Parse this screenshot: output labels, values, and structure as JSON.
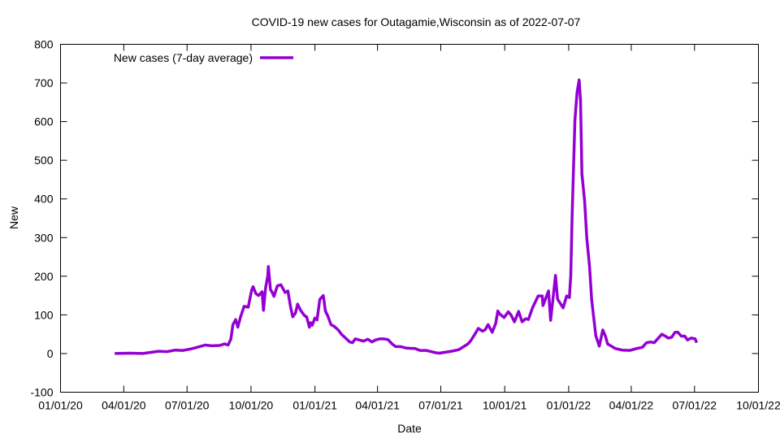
{
  "chart_data": {
    "type": "line",
    "title": "COVID-19 new cases for Outagamie,Wisconsin as of 2022-07-07",
    "xlabel": "Date",
    "ylabel": "New",
    "xlim": [
      "2020-01-01",
      "2022-10-01"
    ],
    "ylim": [
      -100,
      800
    ],
    "x_ticks": [
      "01/01/20",
      "04/01/20",
      "07/01/20",
      "10/01/20",
      "01/01/21",
      "04/01/21",
      "07/01/21",
      "10/01/21",
      "01/01/22",
      "04/01/22",
      "07/01/22",
      "10/01/22"
    ],
    "x_tick_dates": [
      "2020-01-01",
      "2020-04-01",
      "2020-07-01",
      "2020-10-01",
      "2021-01-01",
      "2021-04-01",
      "2021-07-01",
      "2021-10-01",
      "2022-01-01",
      "2022-04-01",
      "2022-07-01",
      "2022-10-01"
    ],
    "y_ticks": [
      -100,
      0,
      100,
      200,
      300,
      400,
      500,
      600,
      700,
      800
    ],
    "grid": false,
    "legend_position": "top-left",
    "series": [
      {
        "name": "New cases (7-day average)",
        "color": "#9400d3",
        "points": [
          [
            "2020-03-19",
            0
          ],
          [
            "2020-04-10",
            1
          ],
          [
            "2020-04-28",
            0
          ],
          [
            "2020-05-10",
            3
          ],
          [
            "2020-05-21",
            6
          ],
          [
            "2020-06-02",
            5
          ],
          [
            "2020-06-14",
            9
          ],
          [
            "2020-06-25",
            8
          ],
          [
            "2020-07-07",
            12
          ],
          [
            "2020-07-19",
            18
          ],
          [
            "2020-07-27",
            22
          ],
          [
            "2020-08-05",
            20
          ],
          [
            "2020-08-17",
            21
          ],
          [
            "2020-08-24",
            25
          ],
          [
            "2020-08-29",
            22
          ],
          [
            "2020-09-02",
            37
          ],
          [
            "2020-09-05",
            75
          ],
          [
            "2020-09-09",
            88
          ],
          [
            "2020-09-12",
            68
          ],
          [
            "2020-09-16",
            95
          ],
          [
            "2020-09-21",
            122
          ],
          [
            "2020-09-27",
            120
          ],
          [
            "2020-10-02",
            165
          ],
          [
            "2020-10-04",
            173
          ],
          [
            "2020-10-08",
            155
          ],
          [
            "2020-10-12",
            150
          ],
          [
            "2020-10-17",
            160
          ],
          [
            "2020-10-19",
            112
          ],
          [
            "2020-10-22",
            170
          ],
          [
            "2020-10-25",
            200
          ],
          [
            "2020-10-26",
            225
          ],
          [
            "2020-10-29",
            165
          ],
          [
            "2020-10-31",
            160
          ],
          [
            "2020-11-03",
            148
          ],
          [
            "2020-11-08",
            175
          ],
          [
            "2020-11-13",
            178
          ],
          [
            "2020-11-19",
            158
          ],
          [
            "2020-11-23",
            162
          ],
          [
            "2020-11-27",
            120
          ],
          [
            "2020-11-30",
            95
          ],
          [
            "2020-12-04",
            105
          ],
          [
            "2020-12-07",
            128
          ],
          [
            "2020-12-12",
            110
          ],
          [
            "2020-12-17",
            98
          ],
          [
            "2020-12-20",
            95
          ],
          [
            "2020-12-24",
            68
          ],
          [
            "2020-12-26",
            80
          ],
          [
            "2020-12-28",
            73
          ],
          [
            "2021-01-01",
            92
          ],
          [
            "2021-01-04",
            87
          ],
          [
            "2021-01-08",
            140
          ],
          [
            "2021-01-13",
            150
          ],
          [
            "2021-01-16",
            110
          ],
          [
            "2021-01-20",
            95
          ],
          [
            "2021-01-24",
            75
          ],
          [
            "2021-01-29",
            70
          ],
          [
            "2021-02-04",
            60
          ],
          [
            "2021-02-08",
            50
          ],
          [
            "2021-02-14",
            40
          ],
          [
            "2021-02-20",
            30
          ],
          [
            "2021-02-24",
            28
          ],
          [
            "2021-02-28",
            38
          ],
          [
            "2021-03-06",
            35
          ],
          [
            "2021-03-12",
            32
          ],
          [
            "2021-03-18",
            37
          ],
          [
            "2021-03-24",
            30
          ],
          [
            "2021-03-29",
            35
          ],
          [
            "2021-04-04",
            38
          ],
          [
            "2021-04-10",
            38
          ],
          [
            "2021-04-16",
            36
          ],
          [
            "2021-04-22",
            25
          ],
          [
            "2021-04-27",
            18
          ],
          [
            "2021-05-04",
            18
          ],
          [
            "2021-05-13",
            14
          ],
          [
            "2021-05-25",
            13
          ],
          [
            "2021-06-01",
            8
          ],
          [
            "2021-06-10",
            8
          ],
          [
            "2021-06-17",
            5
          ],
          [
            "2021-06-24",
            2
          ],
          [
            "2021-06-29",
            1
          ],
          [
            "2021-07-06",
            3
          ],
          [
            "2021-07-13",
            5
          ],
          [
            "2021-07-22",
            8
          ],
          [
            "2021-07-27",
            10
          ],
          [
            "2021-08-03",
            18
          ],
          [
            "2021-08-09",
            25
          ],
          [
            "2021-08-13",
            33
          ],
          [
            "2021-08-18",
            47
          ],
          [
            "2021-08-24",
            65
          ],
          [
            "2021-08-30",
            58
          ],
          [
            "2021-09-03",
            62
          ],
          [
            "2021-09-07",
            75
          ],
          [
            "2021-09-13",
            55
          ],
          [
            "2021-09-18",
            78
          ],
          [
            "2021-09-21",
            110
          ],
          [
            "2021-09-24",
            102
          ],
          [
            "2021-09-30",
            93
          ],
          [
            "2021-10-06",
            108
          ],
          [
            "2021-10-10",
            100
          ],
          [
            "2021-10-15",
            82
          ],
          [
            "2021-10-21",
            109
          ],
          [
            "2021-10-26",
            82
          ],
          [
            "2021-10-31",
            90
          ],
          [
            "2021-11-04",
            88
          ],
          [
            "2021-11-10",
            118
          ],
          [
            "2021-11-18",
            149
          ],
          [
            "2021-11-24",
            149
          ],
          [
            "2021-11-25",
            124
          ],
          [
            "2021-12-03",
            162
          ],
          [
            "2021-12-06",
            86
          ],
          [
            "2021-12-13",
            202
          ],
          [
            "2021-12-16",
            141
          ],
          [
            "2021-12-24",
            118
          ],
          [
            "2021-12-29",
            149
          ],
          [
            "2022-01-02",
            145
          ],
          [
            "2022-01-04",
            202
          ],
          [
            "2022-01-06",
            360
          ],
          [
            "2022-01-10",
            604
          ],
          [
            "2022-01-13",
            675
          ],
          [
            "2022-01-16",
            708
          ],
          [
            "2022-01-18",
            654
          ],
          [
            "2022-01-20",
            465
          ],
          [
            "2022-01-24",
            393
          ],
          [
            "2022-01-27",
            299
          ],
          [
            "2022-01-31",
            225
          ],
          [
            "2022-02-03",
            139
          ],
          [
            "2022-02-09",
            46
          ],
          [
            "2022-02-14",
            19
          ],
          [
            "2022-02-19",
            61
          ],
          [
            "2022-02-23",
            44
          ],
          [
            "2022-02-26",
            25
          ],
          [
            "2022-03-09",
            13
          ],
          [
            "2022-03-19",
            9
          ],
          [
            "2022-03-30",
            8
          ],
          [
            "2022-04-11",
            14
          ],
          [
            "2022-04-17",
            16
          ],
          [
            "2022-04-23",
            28
          ],
          [
            "2022-04-29",
            30
          ],
          [
            "2022-05-04",
            28
          ],
          [
            "2022-05-10",
            40
          ],
          [
            "2022-05-15",
            50
          ],
          [
            "2022-05-20",
            45
          ],
          [
            "2022-05-24",
            40
          ],
          [
            "2022-05-29",
            42
          ],
          [
            "2022-06-03",
            55
          ],
          [
            "2022-06-07",
            55
          ],
          [
            "2022-06-12",
            45
          ],
          [
            "2022-06-17",
            45
          ],
          [
            "2022-06-21",
            35
          ],
          [
            "2022-06-26",
            40
          ],
          [
            "2022-07-02",
            38
          ],
          [
            "2022-07-04",
            28
          ]
        ]
      }
    ]
  }
}
